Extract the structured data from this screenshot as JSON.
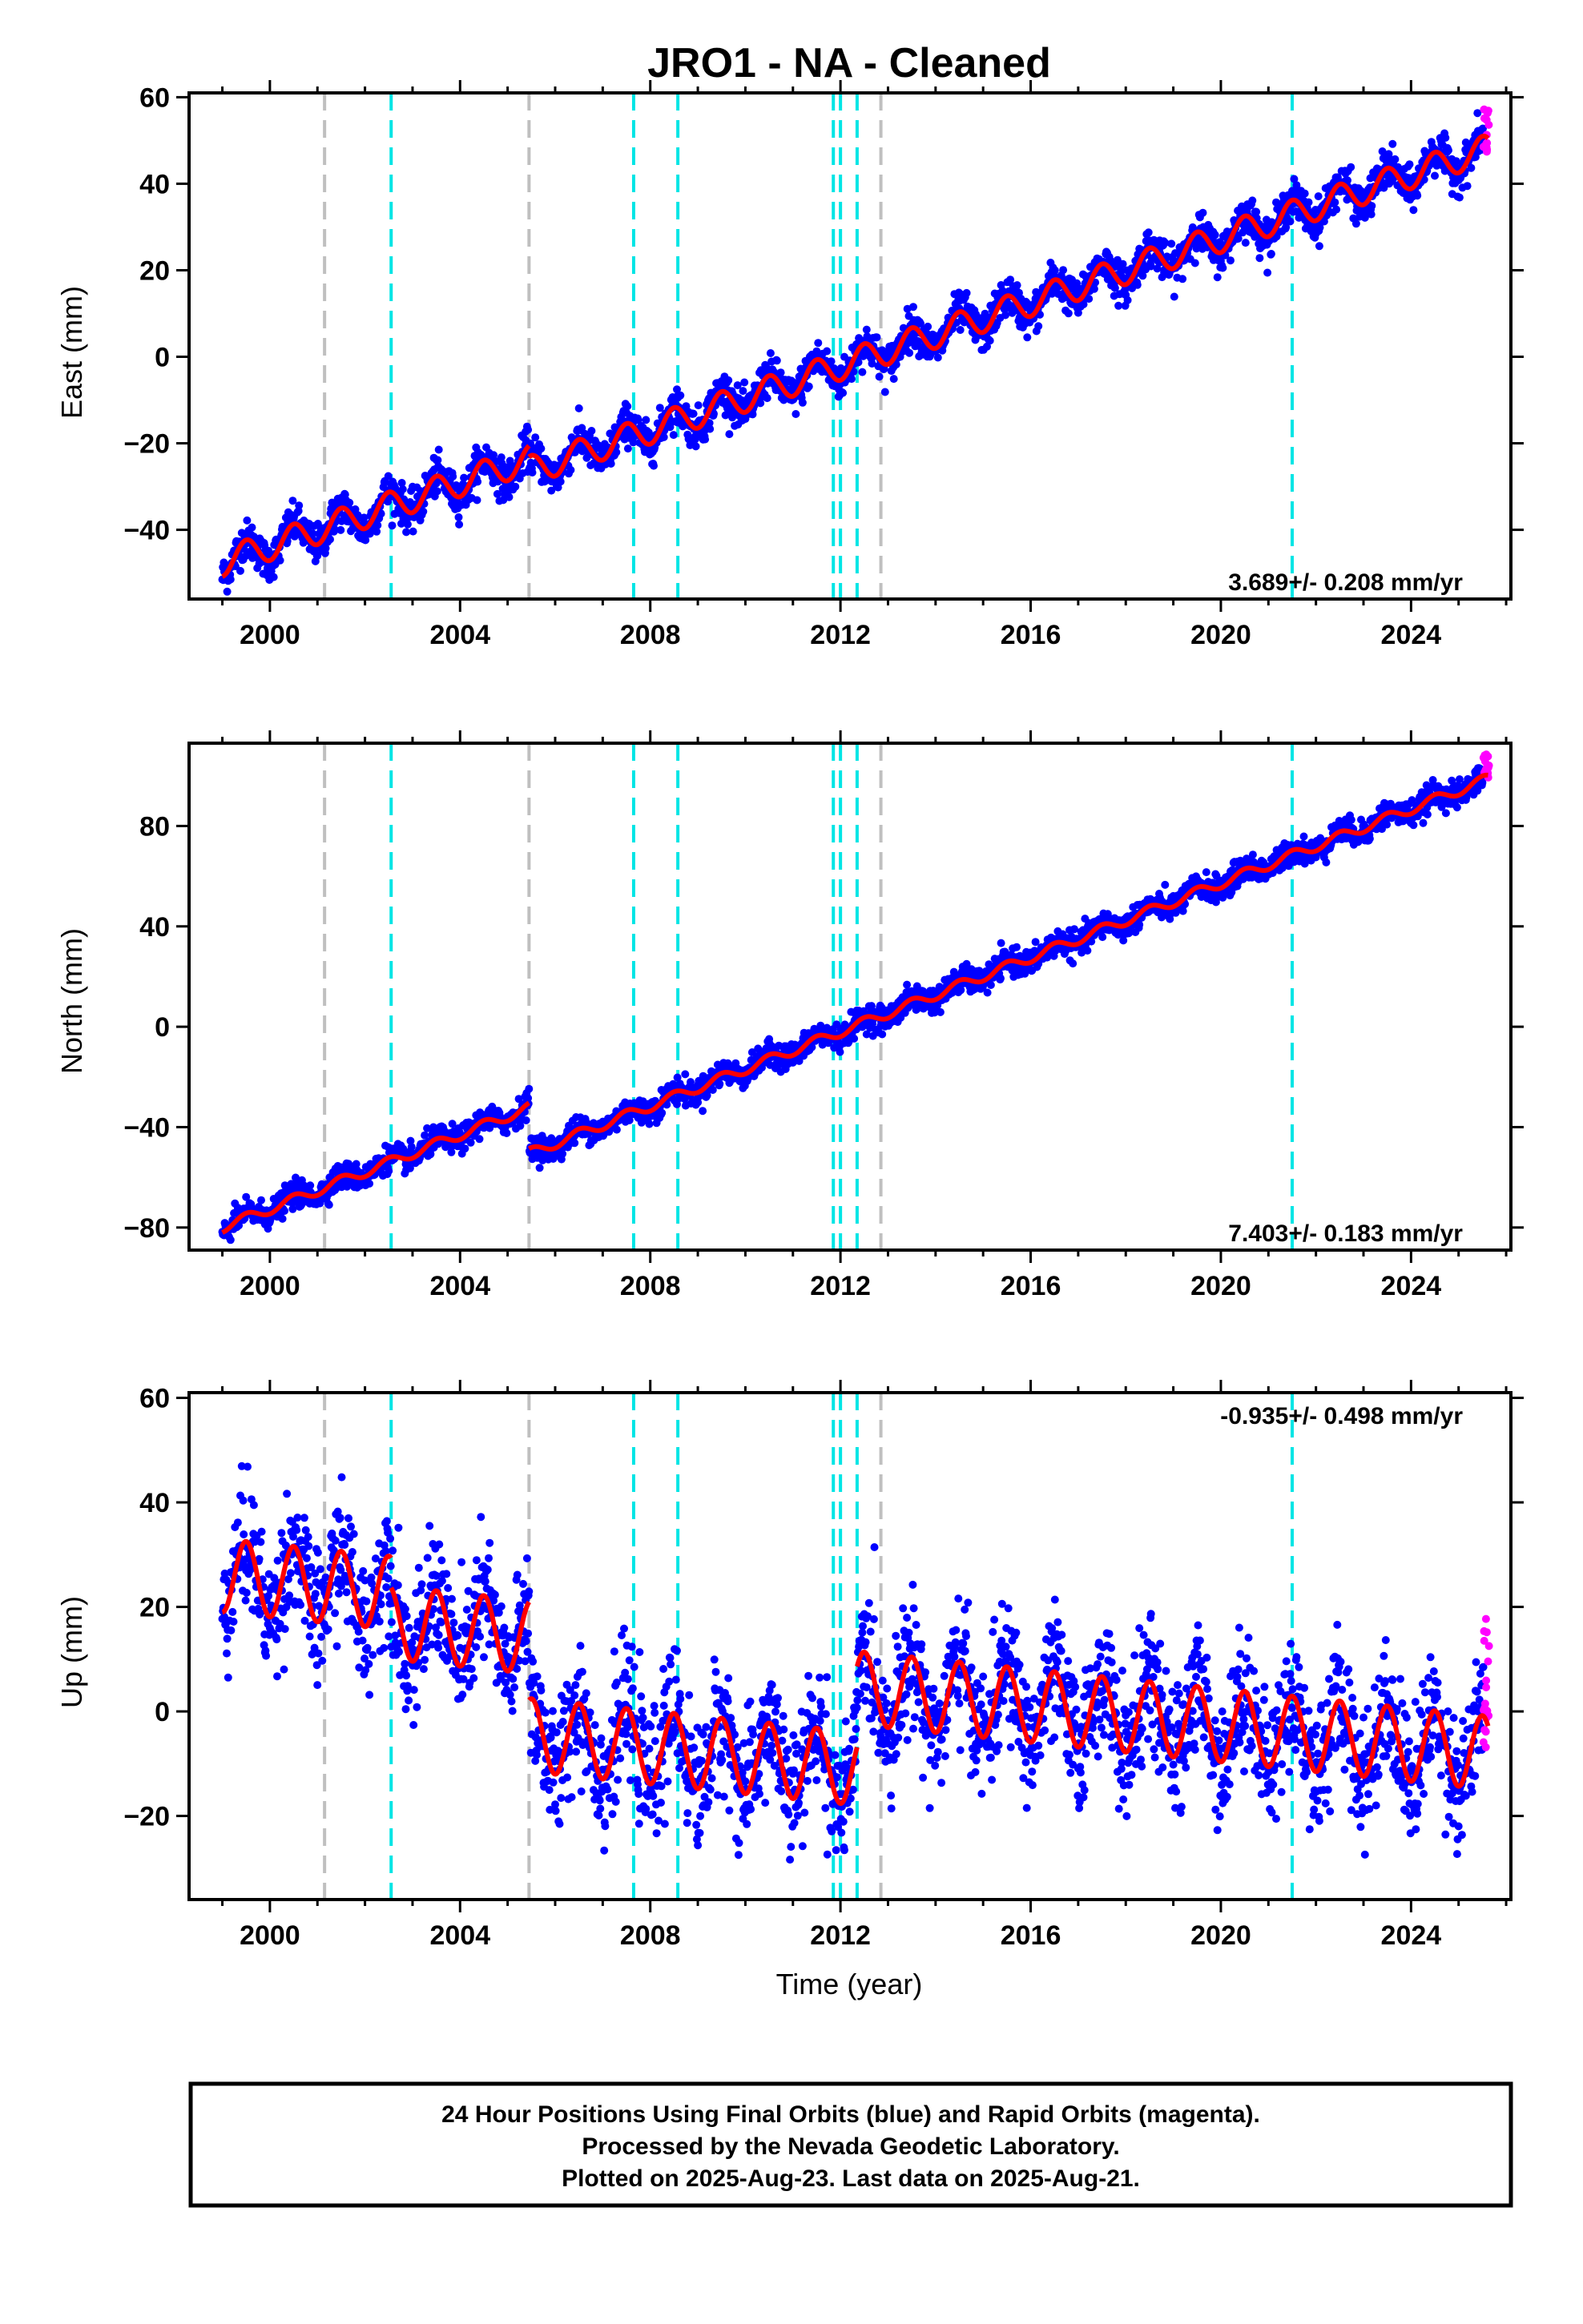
{
  "title": "JRO1  - NA - Cleaned",
  "xlabel": "Time (year)",
  "footer": {
    "line1": "24 Hour Positions Using Final Orbits (blue) and Rapid Orbits (magenta).",
    "line2": "Processed by the Nevada Geodetic Laboratory.",
    "line3": "Plotted on 2025-Aug-23. Last data on 2025-Aug-21."
  },
  "colors": {
    "final_orbits": "#0000ff",
    "rapid_orbits": "#ff00ff",
    "model": "#ff0000",
    "event_cyan": "#00e5e5",
    "event_gray": "#bfbfbf"
  },
  "chart_data": [
    {
      "type": "scatter",
      "panel": "east",
      "ylabel": "East (mm)",
      "xlim": [
        1998.3,
        2026.1
      ],
      "ylim": [
        -56,
        61
      ],
      "xticks": [
        2000,
        2004,
        2008,
        2012,
        2016,
        2020,
        2024
      ],
      "yticks": [
        -40,
        -20,
        0,
        20,
        40,
        60
      ],
      "xtick_labels": [
        "2000",
        "2004",
        "2008",
        "2012",
        "2016",
        "2020",
        "2024"
      ],
      "ytick_labels": [
        "−40",
        "−20",
        "0",
        "20",
        "40",
        "60"
      ],
      "rate_label": "3.689+/- 0.208 mm/yr",
      "rate_position": "bottom-right",
      "model": {
        "rate_mm_yr": 3.689,
        "seasonal_amplitude_mm": 3.3,
        "segments": [
          {
            "x_start": 1999.0,
            "x_end": 2005.45,
            "y_start": -47.5
          },
          {
            "x_start": 2005.45,
            "x_end": 2025.62,
            "y_start": -26.3
          }
        ]
      },
      "observations": {
        "series": "final_orbits",
        "x_start": 1999.0,
        "x_end": 2025.52,
        "y_start": -47.5,
        "y_end": 50.0,
        "scatter_mm": 2.2,
        "seasonal_amplitude_mm": 3.3
      },
      "rapid_observations": {
        "x_start": 2025.52,
        "x_end": 2025.64,
        "y_min": 47.0,
        "y_max": 58.0
      }
    },
    {
      "type": "scatter",
      "panel": "north",
      "ylabel": "North (mm)",
      "xlim": [
        1998.3,
        2026.1
      ],
      "ylim": [
        -89,
        113
      ],
      "xticks": [
        2000,
        2004,
        2008,
        2012,
        2016,
        2020,
        2024
      ],
      "yticks": [
        -80,
        -40,
        0,
        40,
        80
      ],
      "xtick_labels": [
        "2000",
        "2004",
        "2008",
        "2012",
        "2016",
        "2020",
        "2024"
      ],
      "ytick_labels": [
        "−80",
        "−40",
        "0",
        "40",
        "80"
      ],
      "rate_label": "7.403+/- 0.183 mm/yr",
      "rate_position": "bottom-right",
      "model": {
        "rate_mm_yr": 7.403,
        "seasonal_amplitude_mm": 2.0,
        "segments": [
          {
            "x_start": 1999.0,
            "x_end": 2005.45,
            "y_start": -80.0
          },
          {
            "x_start": 2005.45,
            "x_end": 2025.62,
            "y_start": -50.5
          }
        ]
      },
      "observations": {
        "series": "final_orbits",
        "x_start": 1999.0,
        "x_end": 2025.52,
        "y_start": -80.0,
        "y_end": 103.0,
        "scatter_mm": 2.5,
        "seasonal_amplitude_mm": 2.0
      },
      "rapid_observations": {
        "x_start": 2025.52,
        "x_end": 2025.64,
        "y_min": 99.0,
        "y_max": 109.0
      }
    },
    {
      "type": "scatter",
      "panel": "up",
      "ylabel": "Up (mm)",
      "xlim": [
        1998.3,
        2026.1
      ],
      "ylim": [
        -36,
        61
      ],
      "xticks": [
        2000,
        2004,
        2008,
        2012,
        2016,
        2020,
        2024
      ],
      "yticks": [
        -20,
        0,
        20,
        40,
        60
      ],
      "xtick_labels": [
        "2000",
        "2004",
        "2008",
        "2012",
        "2016",
        "2020",
        "2024"
      ],
      "ytick_labels": [
        "−20",
        "0",
        "20",
        "40",
        "60"
      ],
      "rate_label": "-0.935+/- 0.498 mm/yr",
      "rate_position": "top-right",
      "model": {
        "rate_mm_yr": -0.935,
        "seasonal_amplitude_mm": 7.0,
        "segments": [
          {
            "x_start": 1999.0,
            "x_end": 2002.55,
            "y_start": 26.0
          },
          {
            "x_start": 2002.55,
            "x_end": 2005.45,
            "y_start": 17.0
          },
          {
            "x_start": 2005.45,
            "x_end": 2012.35,
            "y_start": -4.5
          },
          {
            "x_start": 2012.35,
            "x_end": 2025.62,
            "y_start": 4.5
          }
        ]
      },
      "observations": {
        "series": "final_orbits",
        "x_start": 1999.0,
        "x_end": 2025.52,
        "scatter_mm": 6.0,
        "seasonal_amplitude_mm": 7.0
      },
      "rapid_observations": {
        "x_start": 2025.52,
        "x_end": 2025.64,
        "y_min": -9.0,
        "y_max": 18.0
      }
    }
  ],
  "event_lines": {
    "cyan": [
      2002.55,
      2007.65,
      2008.58,
      2011.85,
      2012.0,
      2012.35,
      2021.5
    ],
    "gray": [
      2001.15,
      2005.45,
      2012.85
    ]
  }
}
